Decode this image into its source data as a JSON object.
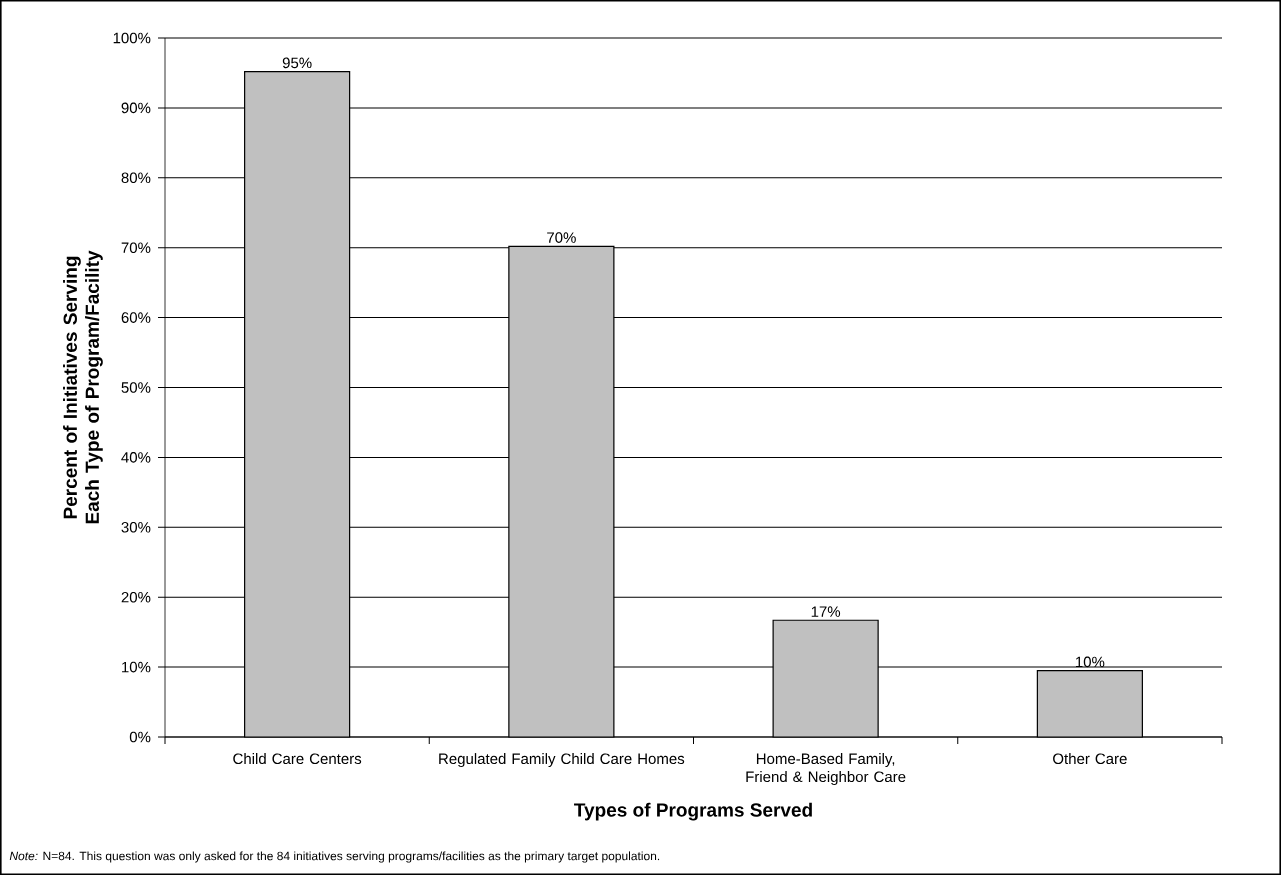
{
  "chart_data": {
    "type": "bar",
    "categories": [
      "Child Care Centers",
      "Regulated Family Child Care Homes",
      "Home-Based Family, Friend & Neighbor Care",
      "Other Care"
    ],
    "values": [
      95.2,
      70.2,
      16.7,
      9.5
    ],
    "value_labels": [
      "95%",
      "70%",
      "17%",
      "10%"
    ],
    "color": "#c0c0c0",
    "ylim": [
      0,
      100
    ],
    "yticks": [
      {
        "value": 0,
        "label": "0%"
      },
      {
        "value": 10,
        "label": "10%"
      },
      {
        "value": 20,
        "label": "20%"
      },
      {
        "value": 30,
        "label": "30%"
      },
      {
        "value": 40,
        "label": "40%"
      },
      {
        "value": 50,
        "label": "50%"
      },
      {
        "value": 60,
        "label": "60%"
      },
      {
        "value": 70,
        "label": "70%"
      },
      {
        "value": 80,
        "label": "80%"
      },
      {
        "value": 90,
        "label": "90%"
      },
      {
        "value": 100,
        "label": "100%"
      }
    ],
    "grid": "y",
    "xlabel": "Types of Programs Served",
    "ylabel": "Percent of Initiatives Serving Each Type of Program/Facility",
    "annotations": [
      "*Note:* N=84. This question was only asked for the 84 initiatives serving programs/facilities as the primary target population."
    ]
  }
}
